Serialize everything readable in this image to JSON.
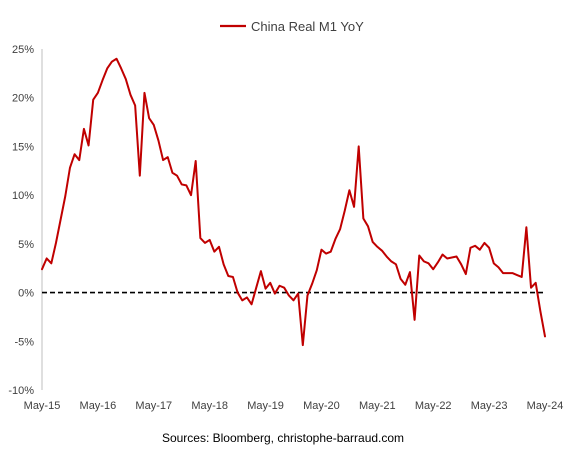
{
  "chart_data": {
    "type": "line",
    "legend": {
      "position": "top-center",
      "label": "China Real M1 YoY"
    },
    "source": "Sources: Bloomberg, christophe-barraud.com",
    "x_ticks": [
      "May-15",
      "May-16",
      "May-17",
      "May-18",
      "May-19",
      "May-20",
      "May-21",
      "May-22",
      "May-23",
      "May-24"
    ],
    "y_ticks": [
      "25%",
      "20%",
      "15%",
      "10%",
      "5%",
      "0%",
      "-5%",
      "-10%"
    ],
    "ylim": [
      -10,
      25
    ],
    "xlim": [
      "2015-05",
      "2024-05"
    ],
    "grid": "none",
    "reference_line": {
      "y": 0,
      "style": "dashed",
      "color": "#000000"
    },
    "series": [
      {
        "name": "China Real M1 YoY",
        "color": "#c00000",
        "x": [
          "2015-05",
          "2015-06",
          "2015-07",
          "2015-08",
          "2015-09",
          "2015-10",
          "2015-11",
          "2015-12",
          "2016-01",
          "2016-02",
          "2016-03",
          "2016-04",
          "2016-05",
          "2016-06",
          "2016-07",
          "2016-08",
          "2016-09",
          "2016-10",
          "2016-11",
          "2016-12",
          "2017-01",
          "2017-02",
          "2017-03",
          "2017-04",
          "2017-05",
          "2017-06",
          "2017-07",
          "2017-08",
          "2017-09",
          "2017-10",
          "2017-11",
          "2017-12",
          "2018-01",
          "2018-02",
          "2018-03",
          "2018-04",
          "2018-05",
          "2018-06",
          "2018-07",
          "2018-08",
          "2018-09",
          "2018-10",
          "2018-11",
          "2018-12",
          "2019-01",
          "2019-02",
          "2019-03",
          "2019-04",
          "2019-05",
          "2019-06",
          "2019-07",
          "2019-08",
          "2019-09",
          "2019-10",
          "2019-11",
          "2019-12",
          "2020-01",
          "2020-02",
          "2020-03",
          "2020-04",
          "2020-05",
          "2020-06",
          "2020-07",
          "2020-08",
          "2020-09",
          "2020-10",
          "2020-11",
          "2020-12",
          "2021-01",
          "2021-02",
          "2021-03",
          "2021-04",
          "2021-05",
          "2021-06",
          "2021-07",
          "2021-08",
          "2021-09",
          "2021-10",
          "2021-11",
          "2021-12",
          "2022-01",
          "2022-02",
          "2022-03",
          "2022-04",
          "2022-05",
          "2022-06",
          "2022-07",
          "2022-08",
          "2022-09",
          "2022-10",
          "2022-11",
          "2022-12",
          "2023-01",
          "2023-02",
          "2023-03",
          "2023-04",
          "2023-05",
          "2023-06",
          "2023-07",
          "2023-08",
          "2023-09",
          "2023-10",
          "2023-11",
          "2023-12",
          "2024-01",
          "2024-02",
          "2024-03",
          "2024-04",
          "2024-05"
        ],
        "values": [
          2.4,
          3.5,
          3.0,
          5.1,
          7.5,
          9.9,
          12.8,
          14.2,
          13.6,
          16.8,
          15.1,
          19.8,
          20.5,
          21.8,
          23.0,
          23.7,
          24.0,
          23.0,
          21.9,
          20.3,
          19.2,
          12.0,
          20.5,
          17.9,
          17.2,
          15.6,
          13.6,
          13.9,
          12.3,
          12.0,
          11.1,
          11.0,
          10.0,
          13.5,
          5.6,
          5.1,
          5.4,
          4.2,
          4.7,
          2.9,
          1.7,
          1.6,
          0.0,
          -0.8,
          -0.5,
          -1.2,
          0.5,
          2.2,
          0.4,
          1.0,
          -0.1,
          0.7,
          0.5,
          -0.3,
          -0.8,
          -0.1,
          -5.4,
          -0.3,
          0.9,
          2.3,
          4.4,
          4.0,
          4.2,
          5.5,
          6.5,
          8.4,
          10.5,
          8.8,
          15.0,
          7.6,
          6.8,
          5.2,
          4.7,
          4.3,
          3.7,
          3.2,
          2.9,
          1.4,
          0.8,
          2.1,
          -2.8,
          3.8,
          3.2,
          3.0,
          2.4,
          3.1,
          3.9,
          3.5,
          3.6,
          3.7,
          2.9,
          1.9,
          4.6,
          4.8,
          4.4,
          5.1,
          4.6,
          3.0,
          2.6,
          2.0,
          2.0,
          2.0,
          1.8,
          1.6,
          6.7,
          0.5,
          1.0,
          -1.9,
          -4.5
        ]
      }
    ]
  }
}
